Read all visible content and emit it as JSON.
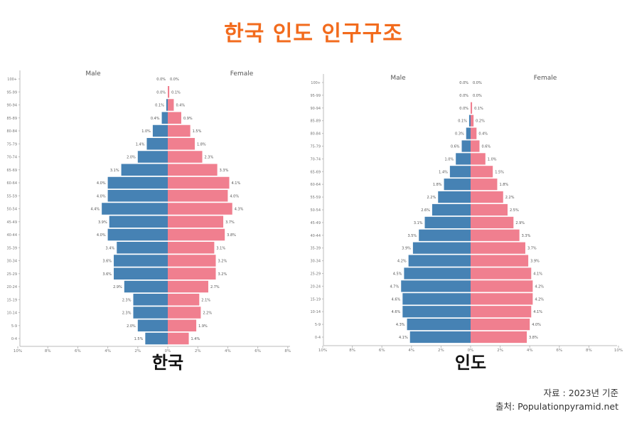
{
  "title": "한국 인도 인구구조",
  "source": "자료 : 2023년 기준",
  "credit": "출처: Populationpyramid.net",
  "colors": {
    "male": "#4682b4",
    "female": "#f07f8f",
    "title": "#f26b1d"
  },
  "chart_data": [
    {
      "type": "bar",
      "name": "한국",
      "legend": {
        "male": "Male",
        "female": "Female"
      },
      "categories": [
        "100+",
        "95-99",
        "90-94",
        "85-89",
        "80-84",
        "75-79",
        "70-74",
        "65-69",
        "60-64",
        "55-59",
        "50-54",
        "45-49",
        "40-44",
        "35-39",
        "30-34",
        "25-29",
        "20-24",
        "15-19",
        "10-14",
        "5-9",
        "0-4"
      ],
      "male_label": [
        "0.0%",
        "0.0%",
        "0.1%",
        "0.4%",
        "1.0%",
        "1.4%",
        "2.0%",
        "3.1%",
        "4.0%",
        "4.0%",
        "4.4%",
        "3.9%",
        "4.0%",
        "3.4%",
        "3.6%",
        "3.6%",
        "2.9%",
        "2.3%",
        "2.3%",
        "2.0%",
        "1.5%"
      ],
      "female_label": [
        "0.0%",
        "0.1%",
        "0.4%",
        "0.9%",
        "1.5%",
        "1.8%",
        "2.3%",
        "3.3%",
        "4.1%",
        "4.0%",
        "4.3%",
        "3.7%",
        "3.8%",
        "3.1%",
        "3.2%",
        "3.2%",
        "2.7%",
        "2.1%",
        "2.2%",
        "1.9%",
        "1.4%"
      ],
      "male": [
        0.0,
        0.0,
        0.1,
        0.4,
        1.0,
        1.4,
        2.0,
        3.1,
        4.0,
        4.0,
        4.4,
        3.9,
        4.0,
        3.4,
        3.6,
        3.6,
        2.9,
        2.3,
        2.3,
        2.0,
        1.5
      ],
      "female": [
        0.0,
        0.1,
        0.4,
        0.9,
        1.5,
        1.8,
        2.3,
        3.3,
        4.1,
        4.0,
        4.3,
        3.7,
        3.8,
        3.1,
        3.2,
        3.2,
        2.7,
        2.1,
        2.2,
        1.9,
        1.4
      ],
      "x_ticks": [
        "10%",
        "8%",
        "6%",
        "4%",
        "2%",
        "0%",
        "2%",
        "4%",
        "6%",
        "8%"
      ],
      "xlim": [
        -10,
        8
      ]
    },
    {
      "type": "bar",
      "name": "인도",
      "legend": {
        "male": "Male",
        "female": "Female"
      },
      "categories": [
        "100+",
        "95-99",
        "90-94",
        "85-89",
        "80-84",
        "75-79",
        "70-74",
        "65-69",
        "60-64",
        "55-59",
        "50-54",
        "45-49",
        "40-44",
        "35-39",
        "30-34",
        "25-29",
        "20-24",
        "15-19",
        "10-14",
        "5-9",
        "0-4"
      ],
      "male_label": [
        "0.0%",
        "0.0%",
        "0.0%",
        "0.1%",
        "0.3%",
        "0.6%",
        "1.0%",
        "1.4%",
        "1.8%",
        "2.2%",
        "2.6%",
        "3.1%",
        "3.5%",
        "3.9%",
        "4.2%",
        "4.5%",
        "4.7%",
        "4.6%",
        "4.6%",
        "4.3%",
        "4.1%"
      ],
      "female_label": [
        "0.0%",
        "0.0%",
        "0.1%",
        "0.2%",
        "0.4%",
        "0.6%",
        "1.0%",
        "1.5%",
        "1.8%",
        "2.2%",
        "2.5%",
        "2.9%",
        "3.3%",
        "3.7%",
        "3.9%",
        "4.1%",
        "4.2%",
        "4.2%",
        "4.1%",
        "4.0%",
        "3.8%"
      ],
      "male": [
        0.0,
        0.0,
        0.0,
        0.1,
        0.3,
        0.6,
        1.0,
        1.4,
        1.8,
        2.2,
        2.6,
        3.1,
        3.5,
        3.9,
        4.2,
        4.5,
        4.7,
        4.6,
        4.6,
        4.3,
        4.1
      ],
      "female": [
        0.0,
        0.0,
        0.1,
        0.2,
        0.4,
        0.6,
        1.0,
        1.5,
        1.8,
        2.2,
        2.5,
        2.9,
        3.3,
        3.7,
        3.9,
        4.1,
        4.2,
        4.2,
        4.1,
        4.0,
        3.8
      ],
      "x_ticks": [
        "10%",
        "8%",
        "6%",
        "4%",
        "2%",
        "0%",
        "2%",
        "4%",
        "6%",
        "8%",
        "10%"
      ],
      "xlim": [
        -10,
        10
      ]
    }
  ]
}
